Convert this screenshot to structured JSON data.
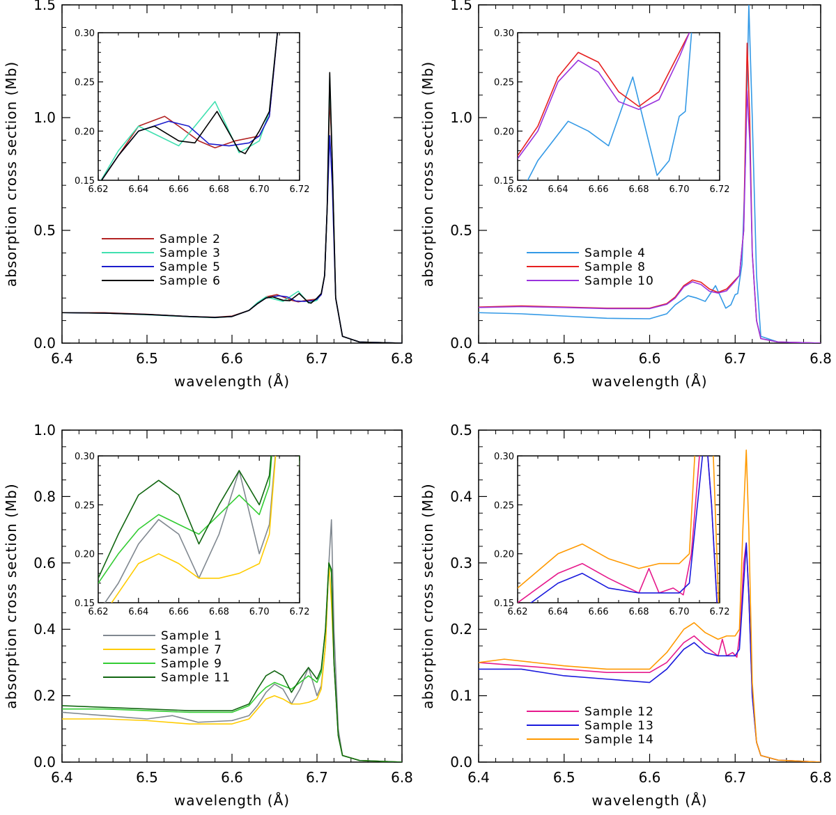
{
  "chart_data": [
    {
      "type": "line",
      "panel": "top-left",
      "xlabel": "wavelength (Å)",
      "ylabel": "absorption cross section (Mb)",
      "xlim": [
        6.4,
        6.8
      ],
      "ylim": [
        0,
        1.5
      ],
      "xticks": [
        "6.4",
        "6.5",
        "6.6",
        "6.7",
        "6.8"
      ],
      "yticks": [
        "0.0",
        "0.5",
        "1.0",
        "1.5"
      ],
      "legend_position": "center-left",
      "series": [
        {
          "name": "Sample 2",
          "color": "#b22222",
          "x": [
            6.4,
            6.45,
            6.5,
            6.55,
            6.58,
            6.6,
            6.62,
            6.63,
            6.64,
            6.653,
            6.66,
            6.67,
            6.678,
            6.688,
            6.7,
            6.705,
            6.709,
            6.712,
            6.715,
            6.718,
            6.722,
            6.73,
            6.75,
            6.8
          ],
          "y": [
            0.135,
            0.135,
            0.128,
            0.118,
            0.115,
            0.12,
            0.145,
            0.175,
            0.205,
            0.215,
            0.205,
            0.19,
            0.183,
            0.19,
            0.195,
            0.215,
            0.3,
            0.6,
            1.1,
            0.8,
            0.2,
            0.03,
            0.005,
            0.0
          ]
        },
        {
          "name": "Sample 3",
          "color": "#40e0b0",
          "x": [
            6.4,
            6.45,
            6.5,
            6.55,
            6.58,
            6.6,
            6.62,
            6.63,
            6.64,
            6.65,
            6.66,
            6.67,
            6.678,
            6.69,
            6.7,
            6.705,
            6.709,
            6.712,
            6.715,
            6.718,
            6.722,
            6.73,
            6.75,
            6.8
          ],
          "y": [
            0.135,
            0.133,
            0.126,
            0.117,
            0.113,
            0.118,
            0.145,
            0.18,
            0.205,
            0.195,
            0.185,
            0.21,
            0.23,
            0.178,
            0.19,
            0.22,
            0.3,
            0.6,
            1.18,
            0.8,
            0.2,
            0.03,
            0.005,
            0.0
          ]
        },
        {
          "name": "Sample 5",
          "color": "#1c1ccc",
          "x": [
            6.4,
            6.45,
            6.5,
            6.55,
            6.58,
            6.6,
            6.62,
            6.63,
            6.64,
            6.655,
            6.665,
            6.675,
            6.685,
            6.695,
            6.7,
            6.705,
            6.709,
            6.712,
            6.715,
            6.718,
            6.722,
            6.73,
            6.75,
            6.8
          ],
          "y": [
            0.135,
            0.133,
            0.127,
            0.118,
            0.114,
            0.118,
            0.145,
            0.175,
            0.2,
            0.21,
            0.205,
            0.187,
            0.185,
            0.188,
            0.195,
            0.215,
            0.3,
            0.6,
            0.92,
            0.7,
            0.2,
            0.03,
            0.005,
            0.0
          ]
        },
        {
          "name": "Sample 6",
          "color": "#000000",
          "x": [
            6.4,
            6.45,
            6.5,
            6.55,
            6.58,
            6.6,
            6.62,
            6.63,
            6.64,
            6.648,
            6.66,
            6.668,
            6.679,
            6.69,
            6.693,
            6.7,
            6.705,
            6.709,
            6.712,
            6.715,
            6.718,
            6.722,
            6.73,
            6.75,
            6.8
          ],
          "y": [
            0.135,
            0.133,
            0.127,
            0.118,
            0.114,
            0.118,
            0.145,
            0.175,
            0.2,
            0.205,
            0.19,
            0.188,
            0.22,
            0.18,
            0.177,
            0.2,
            0.22,
            0.3,
            0.6,
            1.2,
            0.8,
            0.2,
            0.03,
            0.005,
            0.0
          ]
        }
      ],
      "inset": {
        "xlim": [
          6.62,
          6.72
        ],
        "ylim": [
          0.15,
          0.3
        ],
        "xticks": [
          "6.62",
          "6.64",
          "6.66",
          "6.68",
          "6.70",
          "6.72"
        ],
        "yticks": [
          "0.15",
          "0.20",
          "0.25",
          "0.30"
        ]
      }
    },
    {
      "type": "line",
      "panel": "top-right",
      "xlabel": "wavelength (Å)",
      "ylabel": "absorption cross section (Mb)",
      "xlim": [
        6.4,
        6.8
      ],
      "ylim": [
        0,
        1.5
      ],
      "xticks": [
        "6.4",
        "6.5",
        "6.6",
        "6.7",
        "6.8"
      ],
      "yticks": [
        "0.0",
        "0.5",
        "1.0",
        "1.5"
      ],
      "legend_position": "center-left",
      "series": [
        {
          "name": "Sample 4",
          "color": "#3399e6",
          "x": [
            6.4,
            6.45,
            6.5,
            6.55,
            6.6,
            6.62,
            6.63,
            6.645,
            6.655,
            6.665,
            6.677,
            6.68,
            6.689,
            6.695,
            6.7,
            6.703,
            6.708,
            6.712,
            6.716,
            6.72,
            6.725,
            6.73,
            6.75,
            6.8
          ],
          "y": [
            0.135,
            0.13,
            0.12,
            0.11,
            0.108,
            0.13,
            0.17,
            0.21,
            0.2,
            0.185,
            0.255,
            0.23,
            0.155,
            0.17,
            0.215,
            0.22,
            0.35,
            0.8,
            1.5,
            1.0,
            0.3,
            0.03,
            0.005,
            0.0
          ]
        },
        {
          "name": "Sample 8",
          "color": "#e62020",
          "x": [
            6.4,
            6.45,
            6.5,
            6.55,
            6.6,
            6.62,
            6.63,
            6.64,
            6.65,
            6.66,
            6.67,
            6.68,
            6.69,
            6.7,
            6.705,
            6.71,
            6.714,
            6.717,
            6.72,
            6.725,
            6.73,
            6.75,
            6.8
          ],
          "y": [
            0.16,
            0.165,
            0.16,
            0.155,
            0.155,
            0.175,
            0.205,
            0.255,
            0.28,
            0.27,
            0.24,
            0.225,
            0.24,
            0.28,
            0.3,
            0.5,
            1.33,
            1.0,
            0.4,
            0.1,
            0.02,
            0.005,
            0.0
          ]
        },
        {
          "name": "Sample 10",
          "color": "#9933dd",
          "x": [
            6.4,
            6.45,
            6.5,
            6.55,
            6.6,
            6.62,
            6.63,
            6.64,
            6.65,
            6.66,
            6.67,
            6.68,
            6.69,
            6.7,
            6.705,
            6.71,
            6.714,
            6.717,
            6.72,
            6.725,
            6.73,
            6.75,
            6.8
          ],
          "y": [
            0.158,
            0.162,
            0.158,
            0.153,
            0.153,
            0.172,
            0.2,
            0.25,
            0.272,
            0.26,
            0.23,
            0.222,
            0.232,
            0.275,
            0.3,
            0.5,
            1.12,
            0.9,
            0.4,
            0.1,
            0.02,
            0.005,
            0.0
          ]
        }
      ],
      "inset": {
        "xlim": [
          6.62,
          6.72
        ],
        "ylim": [
          0.15,
          0.3
        ],
        "xticks": [
          "6.62",
          "6.64",
          "6.66",
          "6.68",
          "6.70",
          "6.72"
        ],
        "yticks": [
          "0.15",
          "0.20",
          "0.25",
          "0.30"
        ]
      }
    },
    {
      "type": "line",
      "panel": "bottom-left",
      "xlabel": "wavelength (Å)",
      "ylabel": "absorption cross section (Mb)",
      "xlim": [
        6.4,
        6.8
      ],
      "ylim": [
        0,
        1.0
      ],
      "xticks": [
        "6.4",
        "6.5",
        "6.6",
        "6.7",
        "6.8"
      ],
      "yticks": [
        "0.0",
        "0.2",
        "0.4",
        "0.6",
        "0.8",
        "1.0"
      ],
      "legend_position": "bottom-left",
      "series": [
        {
          "name": "Sample 1",
          "color": "#808890",
          "x": [
            6.4,
            6.45,
            6.5,
            6.53,
            6.56,
            6.6,
            6.62,
            6.63,
            6.64,
            6.65,
            6.66,
            6.67,
            6.68,
            6.69,
            6.7,
            6.705,
            6.71,
            6.714,
            6.717,
            6.72,
            6.725,
            6.73,
            6.75,
            6.8
          ],
          "y": [
            0.15,
            0.14,
            0.13,
            0.14,
            0.12,
            0.125,
            0.14,
            0.17,
            0.21,
            0.235,
            0.22,
            0.175,
            0.22,
            0.285,
            0.2,
            0.23,
            0.35,
            0.6,
            0.73,
            0.4,
            0.1,
            0.02,
            0.005,
            0.0
          ]
        },
        {
          "name": "Sample 7",
          "color": "#ffcc00",
          "x": [
            6.4,
            6.45,
            6.5,
            6.55,
            6.6,
            6.62,
            6.63,
            6.64,
            6.65,
            6.66,
            6.67,
            6.68,
            6.69,
            6.7,
            6.705,
            6.71,
            6.714,
            6.717,
            6.72,
            6.725,
            6.73,
            6.75,
            6.8
          ],
          "y": [
            0.13,
            0.13,
            0.125,
            0.115,
            0.115,
            0.13,
            0.16,
            0.19,
            0.2,
            0.19,
            0.175,
            0.175,
            0.18,
            0.19,
            0.22,
            0.35,
            0.6,
            0.48,
            0.3,
            0.08,
            0.02,
            0.005,
            0.0
          ]
        },
        {
          "name": "Sample 9",
          "color": "#33cc33",
          "x": [
            6.4,
            6.45,
            6.5,
            6.55,
            6.6,
            6.62,
            6.63,
            6.64,
            6.65,
            6.66,
            6.67,
            6.68,
            6.69,
            6.7,
            6.705,
            6.71,
            6.714,
            6.717,
            6.72,
            6.725,
            6.73,
            6.75,
            6.8
          ],
          "y": [
            0.16,
            0.16,
            0.155,
            0.15,
            0.15,
            0.17,
            0.2,
            0.225,
            0.24,
            0.23,
            0.22,
            0.24,
            0.26,
            0.24,
            0.27,
            0.4,
            0.6,
            0.57,
            0.3,
            0.08,
            0.02,
            0.005,
            0.0
          ]
        },
        {
          "name": "Sample 11",
          "color": "#116611",
          "x": [
            6.4,
            6.45,
            6.5,
            6.55,
            6.6,
            6.62,
            6.63,
            6.64,
            6.65,
            6.66,
            6.67,
            6.68,
            6.69,
            6.7,
            6.705,
            6.71,
            6.714,
            6.717,
            6.72,
            6.725,
            6.73,
            6.75,
            6.8
          ],
          "y": [
            0.17,
            0.165,
            0.16,
            0.155,
            0.155,
            0.175,
            0.22,
            0.26,
            0.275,
            0.26,
            0.21,
            0.25,
            0.285,
            0.25,
            0.28,
            0.4,
            0.6,
            0.58,
            0.3,
            0.08,
            0.02,
            0.005,
            0.0
          ]
        }
      ],
      "inset": {
        "xlim": [
          6.62,
          6.72
        ],
        "ylim": [
          0.15,
          0.3
        ],
        "xticks": [
          "6.62",
          "6.64",
          "6.66",
          "6.68",
          "6.70",
          "6.72"
        ],
        "yticks": [
          "0.15",
          "0.20",
          "0.25",
          "0.30"
        ]
      }
    },
    {
      "type": "line",
      "panel": "bottom-right",
      "xlabel": "wavelength (Å)",
      "ylabel": "absorption cross section (Mb)",
      "xlim": [
        6.4,
        6.8
      ],
      "ylim": [
        0,
        0.5
      ],
      "xticks": [
        "6.4",
        "6.5",
        "6.6",
        "6.7",
        "6.8"
      ],
      "yticks": [
        "0.0",
        "0.1",
        "0.2",
        "0.3",
        "0.4",
        "0.5"
      ],
      "legend_position": "bottom-left",
      "series": [
        {
          "name": "Sample 12",
          "color": "#e6198c",
          "x": [
            6.4,
            6.45,
            6.5,
            6.55,
            6.6,
            6.62,
            6.64,
            6.652,
            6.665,
            6.675,
            6.68,
            6.685,
            6.69,
            6.697,
            6.702,
            6.706,
            6.71,
            6.713,
            6.716,
            6.72,
            6.725,
            6.73,
            6.75,
            6.8
          ],
          "y": [
            0.15,
            0.145,
            0.14,
            0.135,
            0.135,
            0.15,
            0.18,
            0.19,
            0.175,
            0.165,
            0.16,
            0.185,
            0.16,
            0.165,
            0.158,
            0.2,
            0.3,
            0.33,
            0.25,
            0.1,
            0.03,
            0.01,
            0.003,
            0.0
          ]
        },
        {
          "name": "Sample 13",
          "color": "#1a1add",
          "x": [
            6.4,
            6.45,
            6.5,
            6.55,
            6.6,
            6.62,
            6.64,
            6.652,
            6.665,
            6.68,
            6.69,
            6.7,
            6.705,
            6.709,
            6.713,
            6.716,
            6.72,
            6.725,
            6.73,
            6.75,
            6.8
          ],
          "y": [
            0.14,
            0.14,
            0.13,
            0.125,
            0.12,
            0.14,
            0.17,
            0.18,
            0.165,
            0.16,
            0.16,
            0.16,
            0.17,
            0.25,
            0.33,
            0.25,
            0.1,
            0.03,
            0.01,
            0.003,
            0.0
          ]
        },
        {
          "name": "Sample 14",
          "color": "#ff9900",
          "x": [
            6.4,
            6.43,
            6.5,
            6.55,
            6.6,
            6.62,
            6.64,
            6.652,
            6.665,
            6.68,
            6.69,
            6.7,
            6.705,
            6.709,
            6.713,
            6.716,
            6.72,
            6.725,
            6.73,
            6.75,
            6.8
          ],
          "y": [
            0.15,
            0.155,
            0.145,
            0.14,
            0.14,
            0.165,
            0.2,
            0.21,
            0.195,
            0.185,
            0.19,
            0.19,
            0.2,
            0.35,
            0.47,
            0.35,
            0.12,
            0.03,
            0.01,
            0.003,
            0.0
          ]
        }
      ],
      "inset": {
        "xlim": [
          6.62,
          6.72
        ],
        "ylim": [
          0.15,
          0.3
        ],
        "xticks": [
          "6.62",
          "6.64",
          "6.66",
          "6.68",
          "6.70",
          "6.72"
        ],
        "yticks": [
          "0.15",
          "0.20",
          "0.25",
          "0.30"
        ]
      }
    }
  ]
}
